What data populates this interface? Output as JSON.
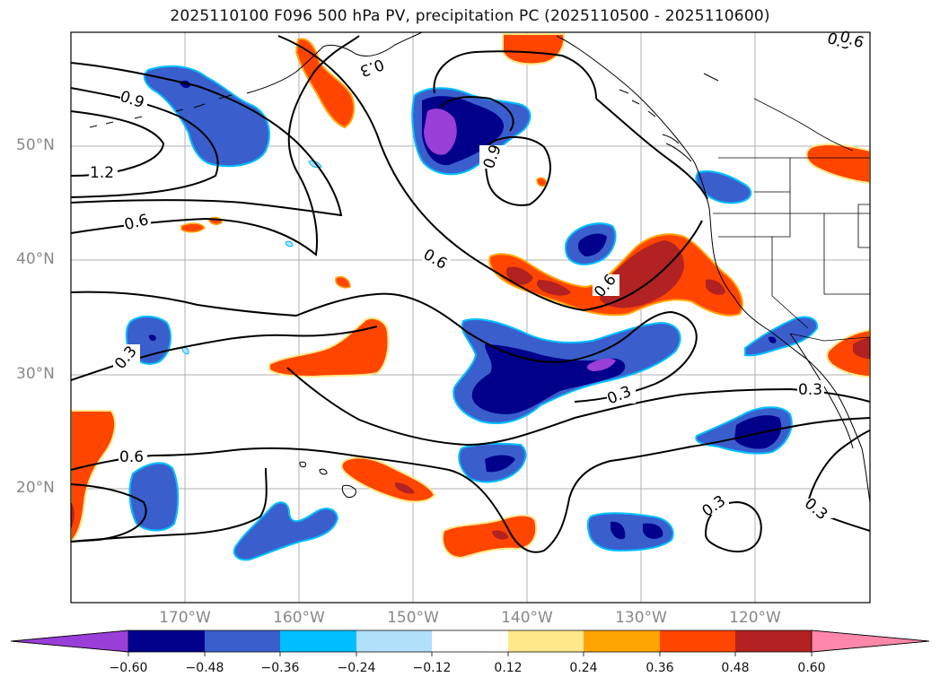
{
  "title": "2025110100 F096 500 hPa PV, precipitation PC (2025110500 - 2025110600)",
  "axes": {
    "lat_labels": [
      "50°N",
      "40°N",
      "30°N",
      "20°N"
    ],
    "lon_labels": [
      "170°W",
      "160°W",
      "150°W",
      "140°W",
      "130°W",
      "120°W"
    ]
  },
  "contour_labels": [
    "0.9",
    "1.2",
    "0.6",
    "0.6",
    "0.9",
    "0.6",
    "0.9",
    "0.3",
    "0.3",
    "0.6",
    "0.3",
    "0.3",
    "0.6",
    "0.3",
    "0.3"
  ],
  "colorbar": {
    "ticks": [
      "−0.60",
      "−0.48",
      "−0.36",
      "−0.24",
      "−0.12",
      "0.12",
      "0.24",
      "0.36",
      "0.48",
      "0.60"
    ],
    "colors": [
      "#9a3ed8",
      "#00008b",
      "#3a5fcd",
      "#00bfff",
      "#b0e0fa",
      "#ffffff",
      "#ffe88a",
      "#ffa500",
      "#ff4500",
      "#b22222",
      "#ff88aa"
    ]
  },
  "fill_colors": {
    "purple": "#9a3ed8",
    "navy": "#00008b",
    "royal": "#3a5fcd",
    "sky": "#00bfff",
    "paleblue": "#b0e0fa",
    "yellow": "#ffe88a",
    "orange": "#ffa500",
    "red_orange": "#ff4500",
    "firebrick": "#b22222"
  }
}
